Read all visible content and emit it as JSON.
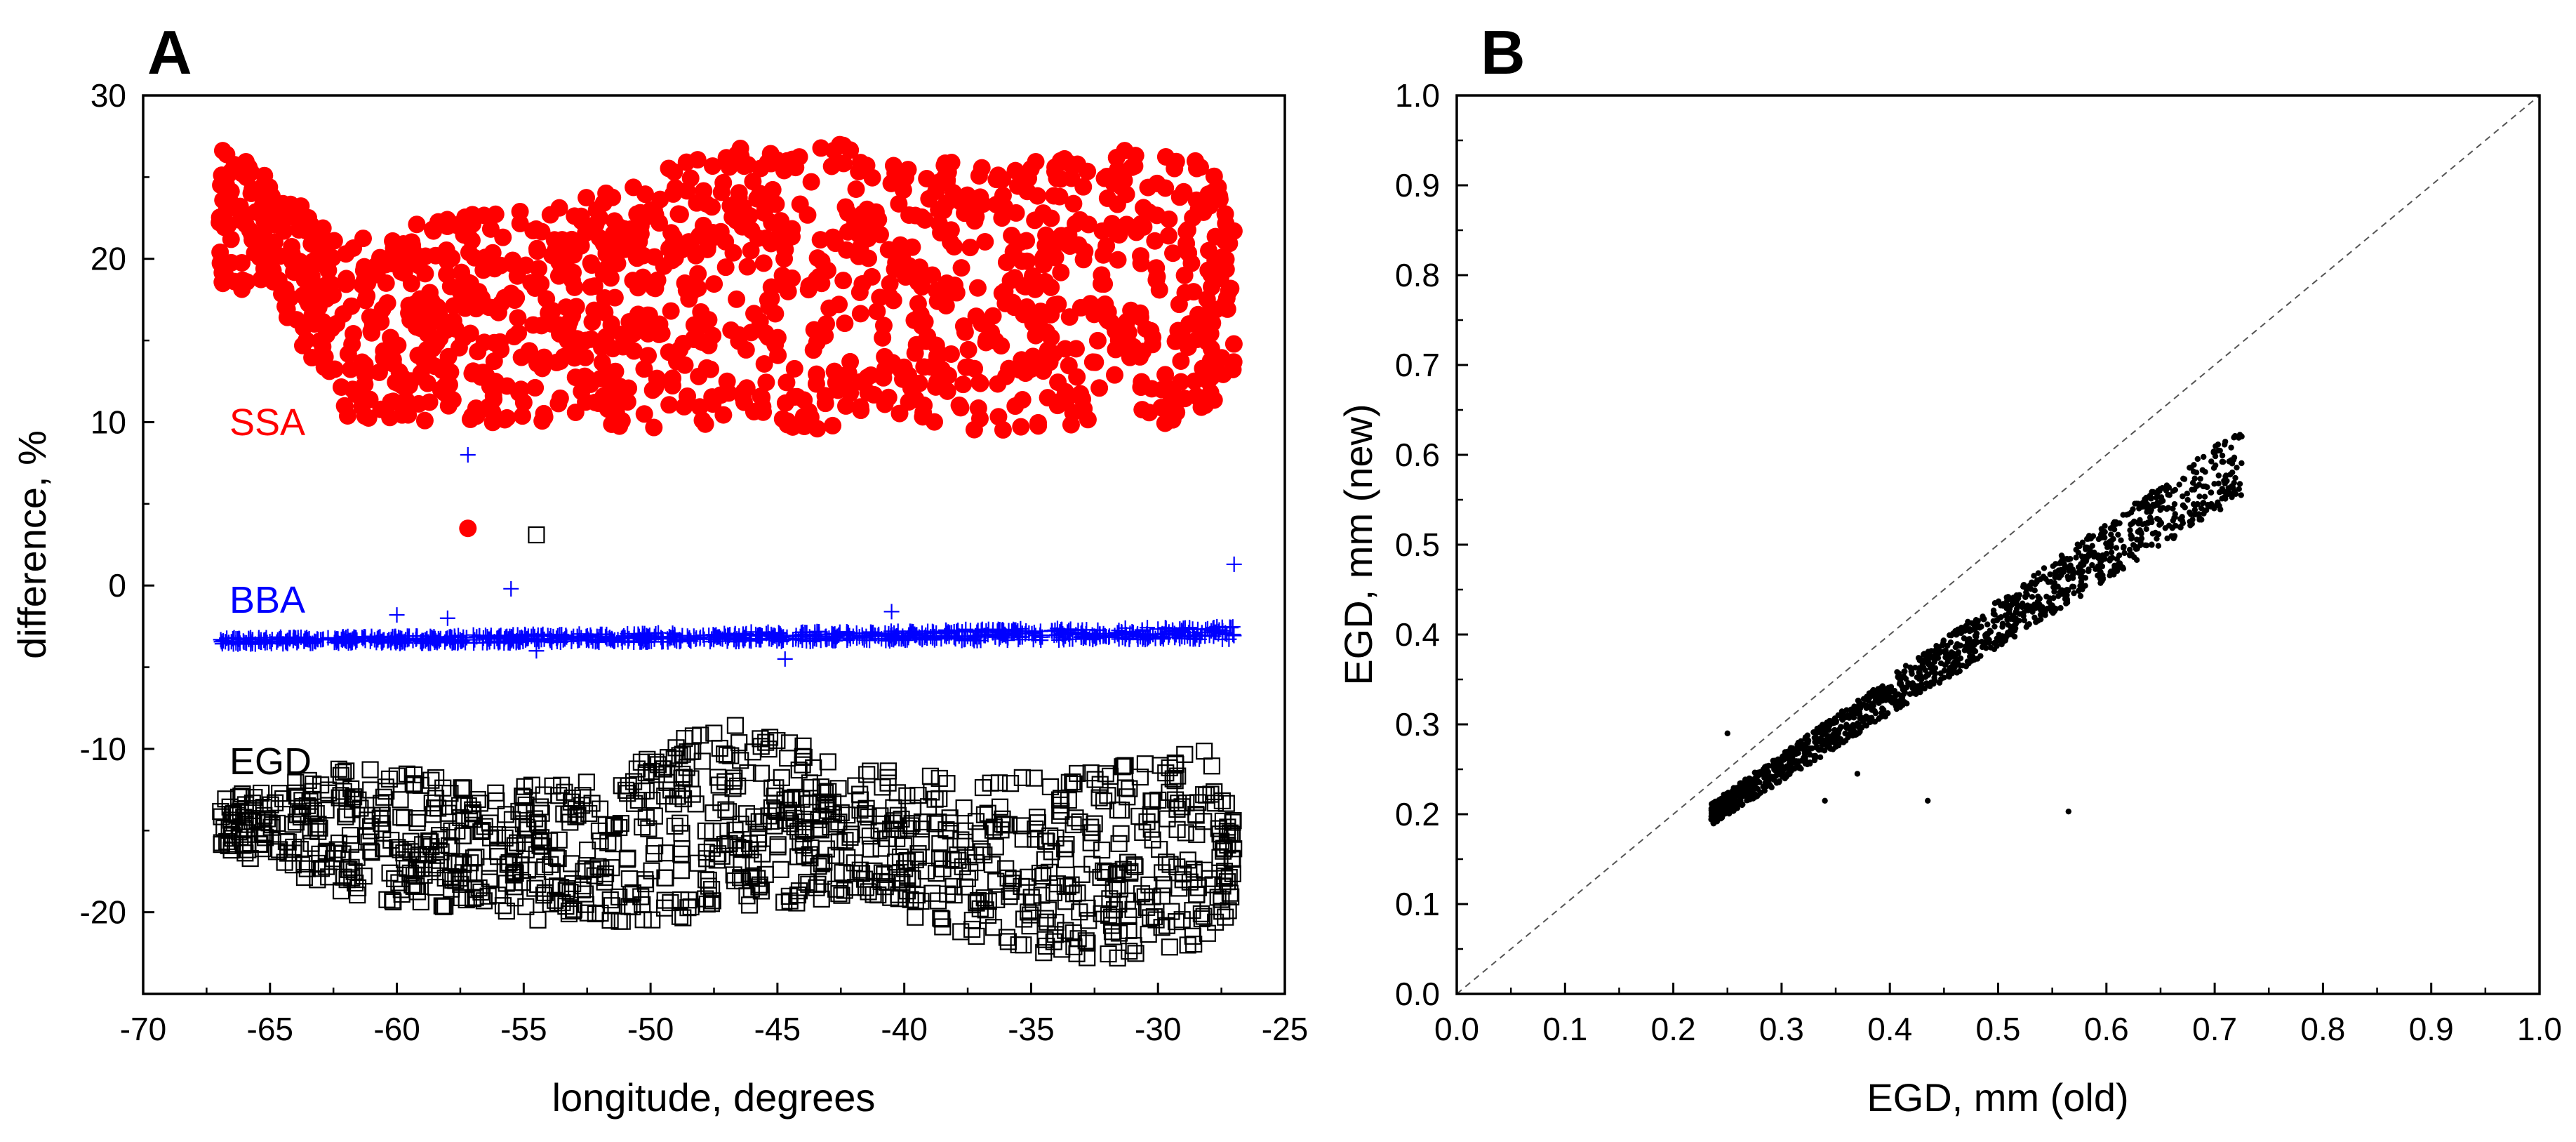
{
  "chart_data": [
    {
      "panel": "A",
      "type": "scatter",
      "xlabel": "longitude, degrees",
      "ylabel": "difference, %",
      "xlim": [
        -70,
        -25
      ],
      "ylim": [
        -25,
        30
      ],
      "xticks": [
        -70,
        -65,
        -60,
        -55,
        -50,
        -45,
        -40,
        -35,
        -30,
        -25
      ],
      "yticks": [
        -20,
        -10,
        0,
        10,
        20,
        30
      ],
      "series": [
        {
          "name": "SSA",
          "label": "SSA",
          "color": "#ff0000",
          "marker": "filled-circle",
          "x_range": [
            -67,
            -27
          ],
          "band": {
            "upper": [
              [
                -67,
                27
              ],
              [
                -65,
                25
              ],
              [
                -62,
                21
              ],
              [
                -57,
                23
              ],
              [
                -52,
                24
              ],
              [
                -47,
                27
              ],
              [
                -42,
                27
              ],
              [
                -37,
                26
              ],
              [
                -32,
                27
              ],
              [
                -28,
                26
              ],
              [
                -27,
                22
              ]
            ],
            "lower": [
              [
                -67,
                18
              ],
              [
                -65,
                18
              ],
              [
                -62,
                10
              ],
              [
                -57,
                10
              ],
              [
                -52,
                9.5
              ],
              [
                -47,
                9.5
              ],
              [
                -42,
                9.5
              ],
              [
                -37,
                9.5
              ],
              [
                -32,
                9.5
              ],
              [
                -28,
                10
              ],
              [
                -27,
                11
              ]
            ]
          },
          "n_points": 1300,
          "outliers": [
            {
              "x": -57.2,
              "y": 3.5
            }
          ]
        },
        {
          "name": "BBA",
          "label": "BBA",
          "color": "#0000ff",
          "marker": "plus",
          "x_range": [
            -67,
            -27
          ],
          "band": {
            "upper": [
              [
                -67,
                -3.2
              ],
              [
                -27,
                -2.5
              ]
            ],
            "lower": [
              [
                -67,
                -3.6
              ],
              [
                -27,
                -3.3
              ]
            ]
          },
          "n_points": 900,
          "outliers": [
            {
              "x": -57.2,
              "y": 8
            },
            {
              "x": -55.5,
              "y": -0.2
            },
            {
              "x": -60,
              "y": -1.8
            },
            {
              "x": -58,
              "y": -2
            },
            {
              "x": -54.5,
              "y": -4
            },
            {
              "x": -44.7,
              "y": -4.5
            },
            {
              "x": -40.5,
              "y": -1.6
            },
            {
              "x": -27,
              "y": 1.3
            }
          ]
        },
        {
          "name": "EGD",
          "label": "EGD",
          "color": "#000000",
          "marker": "open-square",
          "x_range": [
            -67,
            -27
          ],
          "band": {
            "upper": [
              [
                -67,
                -13
              ],
              [
                -62,
                -11
              ],
              [
                -57,
                -12
              ],
              [
                -52,
                -12
              ],
              [
                -47,
                -8
              ],
              [
                -42,
                -11
              ],
              [
                -37,
                -12
              ],
              [
                -32,
                -11
              ],
              [
                -28,
                -10
              ],
              [
                -27,
                -14
              ]
            ],
            "lower": [
              [
                -67,
                -16
              ],
              [
                -62,
                -19
              ],
              [
                -57,
                -20
              ],
              [
                -52,
                -21
              ],
              [
                -47,
                -20
              ],
              [
                -42,
                -19
              ],
              [
                -37,
                -22
              ],
              [
                -32,
                -23
              ],
              [
                -28,
                -22
              ],
              [
                -27,
                -20
              ]
            ]
          },
          "n_points": 1100,
          "outliers": [
            {
              "x": -54.5,
              "y": 3.1
            }
          ]
        }
      ]
    },
    {
      "panel": "B",
      "type": "scatter",
      "xlabel": "EGD, mm (old)",
      "ylabel": "EGD, mm (new)",
      "xlim": [
        0.0,
        1.0
      ],
      "ylim": [
        0.0,
        1.0
      ],
      "xticks": [
        "0.0",
        "0.1",
        "0.2",
        "0.3",
        "0.4",
        "0.5",
        "0.6",
        "0.7",
        "0.8",
        "0.9",
        "1.0"
      ],
      "yticks": [
        "0.0",
        "0.1",
        "0.2",
        "0.3",
        "0.4",
        "0.5",
        "0.6",
        "0.7",
        "0.8",
        "0.9",
        "1.0"
      ],
      "reference_line": {
        "style": "dashed",
        "from": [
          0,
          0
        ],
        "to": [
          1,
          1
        ]
      },
      "series": [
        {
          "name": "EGD new vs old",
          "color": "#000000",
          "marker": "small-dot",
          "relation": {
            "x_range": [
              0.235,
              0.725
            ],
            "slope": 0.8,
            "spread": 0.012
          },
          "n_points": 1500,
          "outliers": [
            {
              "x": 0.25,
              "y": 0.29
            },
            {
              "x": 0.435,
              "y": 0.215
            },
            {
              "x": 0.565,
              "y": 0.203
            },
            {
              "x": 0.37,
              "y": 0.245
            },
            {
              "x": 0.34,
              "y": 0.215
            }
          ]
        }
      ]
    }
  ]
}
